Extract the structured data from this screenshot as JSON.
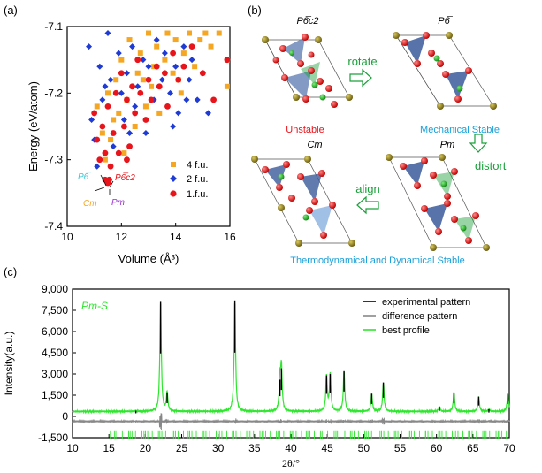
{
  "panel_labels": {
    "a": "(a)",
    "b": "(b)",
    "c": "(c)"
  },
  "chart_data": [
    {
      "type": "scatter",
      "panel": "a",
      "xlabel": "Volume (Å³)",
      "ylabel": "Energy (eV/atom)",
      "xlim": [
        10,
        16
      ],
      "ylim": [
        -7.4,
        -7.1
      ],
      "xticks": [
        10,
        12,
        14,
        16
      ],
      "xtick_labels": [
        "10",
        "12",
        "14",
        "16"
      ],
      "yticks": [
        -7.1,
        -7.2,
        -7.3,
        -7.4
      ],
      "ytick_labels": [
        "-7.1",
        "-7.2",
        "-7.3",
        "-7.4"
      ],
      "legend": [
        {
          "label": "4 f.u.",
          "color": "#f5a623",
          "marker": "square"
        },
        {
          "label": "2 f.u.",
          "color": "#1f3bd6",
          "marker": "diamond"
        },
        {
          "label": "1.f.u.",
          "color": "#e8141b",
          "marker": "circle"
        }
      ],
      "annotations": [
        {
          "text": "P6̅",
          "color": "#39c8d8",
          "x": 10.95,
          "y": -7.325
        },
        {
          "text": "P6̅c2",
          "color": "#e8141b",
          "x": 12.0,
          "y": -7.322
        },
        {
          "text": "Cm",
          "color": "#f5a623",
          "x": 11.0,
          "y": -7.355
        },
        {
          "text": "Pm",
          "color": "#9b30d0",
          "x": 11.8,
          "y": -7.353
        }
      ],
      "series": [
        {
          "name": "4 f.u.",
          "points": [
            [
              11.1,
              -7.22
            ],
            [
              11.3,
              -7.26
            ],
            [
              11.5,
              -7.2
            ],
            [
              11.6,
              -7.27
            ],
            [
              11.8,
              -7.18
            ],
            [
              11.9,
              -7.23
            ],
            [
              12.0,
              -7.15
            ],
            [
              12.1,
              -7.29
            ],
            [
              12.2,
              -7.21
            ],
            [
              12.3,
              -7.12
            ],
            [
              12.5,
              -7.25
            ],
            [
              12.6,
              -7.17
            ],
            [
              12.7,
              -7.14
            ],
            [
              12.9,
              -7.22
            ],
            [
              13.0,
              -7.11
            ],
            [
              13.1,
              -7.19
            ],
            [
              13.3,
              -7.13
            ],
            [
              13.4,
              -7.23
            ],
            [
              13.6,
              -7.15
            ],
            [
              13.7,
              -7.11
            ],
            [
              13.9,
              -7.17
            ],
            [
              14.0,
              -7.12
            ],
            [
              14.2,
              -7.2
            ],
            [
              14.3,
              -7.14
            ],
            [
              14.5,
              -7.11
            ],
            [
              14.7,
              -7.16
            ],
            [
              14.9,
              -7.12
            ],
            [
              15.1,
              -7.11
            ],
            [
              15.3,
              -7.13
            ],
            [
              15.6,
              -7.11
            ],
            [
              15.9,
              -7.19
            ],
            [
              11.4,
              -7.3
            ],
            [
              11.7,
              -7.24
            ],
            [
              12.8,
              -7.18
            ],
            [
              13.2,
              -7.16
            ],
            [
              14.1,
              -7.18
            ],
            [
              15.9,
              -7.15
            ]
          ]
        },
        {
          "name": "2 f.u.",
          "points": [
            [
              10.8,
              -7.13
            ],
            [
              10.9,
              -7.24
            ],
            [
              11.0,
              -7.27
            ],
            [
              11.2,
              -7.16
            ],
            [
              11.3,
              -7.21
            ],
            [
              11.5,
              -7.11
            ],
            [
              11.6,
              -7.18
            ],
            [
              11.7,
              -7.28
            ],
            [
              11.9,
              -7.14
            ],
            [
              12.0,
              -7.2
            ],
            [
              12.1,
              -7.24
            ],
            [
              12.2,
              -7.17
            ],
            [
              12.4,
              -7.13
            ],
            [
              12.5,
              -7.22
            ],
            [
              12.6,
              -7.19
            ],
            [
              12.8,
              -7.15
            ],
            [
              12.9,
              -7.26
            ],
            [
              13.0,
              -7.16
            ],
            [
              13.2,
              -7.21
            ],
            [
              13.3,
              -7.12
            ],
            [
              13.5,
              -7.18
            ],
            [
              13.6,
              -7.14
            ],
            [
              13.8,
              -7.2
            ],
            [
              14.0,
              -7.16
            ],
            [
              14.1,
              -7.23
            ],
            [
              14.3,
              -7.13
            ],
            [
              14.5,
              -7.18
            ],
            [
              14.6,
              -7.15
            ],
            [
              14.8,
              -7.21
            ],
            [
              15.0,
              -7.17
            ],
            [
              15.2,
              -7.23
            ],
            [
              11.4,
              -7.19
            ],
            [
              12.3,
              -7.26
            ],
            [
              13.9,
              -7.25
            ],
            [
              14.4,
              -7.21
            ],
            [
              11.1,
              -7.31
            ]
          ]
        },
        {
          "name": "1.f.u.",
          "points": [
            [
              11.0,
              -7.23
            ],
            [
              11.1,
              -7.27
            ],
            [
              11.2,
              -7.3
            ],
            [
              11.3,
              -7.25
            ],
            [
              11.4,
              -7.29
            ],
            [
              11.5,
              -7.22
            ],
            [
              11.6,
              -7.31
            ],
            [
              11.7,
              -7.26
            ],
            [
              11.8,
              -7.2
            ],
            [
              11.9,
              -7.29
            ],
            [
              12.0,
              -7.17
            ],
            [
              12.1,
              -7.25
            ],
            [
              12.2,
              -7.21
            ],
            [
              12.3,
              -7.28
            ],
            [
              12.4,
              -7.19
            ],
            [
              12.5,
              -7.23
            ],
            [
              12.6,
              -7.15
            ],
            [
              12.7,
              -7.2
            ],
            [
              12.9,
              -7.24
            ],
            [
              13.0,
              -7.18
            ],
            [
              13.1,
              -7.21
            ],
            [
              13.3,
              -7.16
            ],
            [
              13.4,
              -7.19
            ],
            [
              13.6,
              -7.17
            ],
            [
              13.7,
              -7.22
            ],
            [
              13.9,
              -7.14
            ],
            [
              14.1,
              -7.18
            ],
            [
              14.3,
              -7.16
            ],
            [
              14.6,
              -7.13
            ],
            [
              15.0,
              -7.17
            ],
            [
              15.4,
              -7.21
            ],
            [
              15.9,
              -7.15
            ],
            [
              11.4,
              -7.33
            ],
            [
              11.5,
              -7.335
            ],
            [
              11.55,
              -7.33
            ],
            [
              12.2,
              -7.3
            ]
          ]
        }
      ]
    },
    {
      "type": "line",
      "panel": "c",
      "xlabel": "2θ/°",
      "ylabel": "Intensity(a.u.)",
      "xlim": [
        10,
        70
      ],
      "ylim": [
        -1500,
        9000
      ],
      "xticks": [
        10,
        15,
        20,
        25,
        30,
        35,
        40,
        45,
        50,
        55,
        60,
        65,
        70
      ],
      "xtick_labels": [
        "10",
        "15",
        "20",
        "25",
        "30",
        "35",
        "40",
        "45",
        "50",
        "55",
        "60",
        "65",
        "70"
      ],
      "yticks": [
        9000,
        7500,
        6000,
        4500,
        3000,
        1500,
        0,
        -1500
      ],
      "ytick_labels": [
        "9,000",
        "7,500",
        "6,000",
        "4,500",
        "3,000",
        "1,500",
        "0",
        "-1,500"
      ],
      "annotation": "Pm-S",
      "legend": [
        {
          "label": "experimental pattern",
          "color": "#000000"
        },
        {
          "label": "difference pattern",
          "color": "#888888"
        },
        {
          "label": "best profile",
          "color": "#2ee62e"
        }
      ],
      "baseline": 350,
      "peaks": [
        {
          "x": 18.7,
          "y": 400
        },
        {
          "x": 22.1,
          "y": 8100
        },
        {
          "x": 23.0,
          "y": 1700
        },
        {
          "x": 32.3,
          "y": 8200
        },
        {
          "x": 38.5,
          "y": 2600
        },
        {
          "x": 38.7,
          "y": 3400
        },
        {
          "x": 44.9,
          "y": 2900
        },
        {
          "x": 45.4,
          "y": 3000
        },
        {
          "x": 47.3,
          "y": 3200
        },
        {
          "x": 51.1,
          "y": 1600
        },
        {
          "x": 52.7,
          "y": 2400
        },
        {
          "x": 60.4,
          "y": 700
        },
        {
          "x": 62.4,
          "y": 1700
        },
        {
          "x": 65.8,
          "y": 1400
        },
        {
          "x": 67.2,
          "y": 500
        },
        {
          "x": 69.8,
          "y": 1600
        }
      ],
      "tick_marks_y": -1300
    }
  ],
  "structures": {
    "top_left": {
      "title": "P6̅c2",
      "caption": "Unstable",
      "caption_color": "#e8141b"
    },
    "top_right": {
      "title": "P6̅",
      "caption": "Mechanical Stable",
      "caption_color": "#1aa0d8"
    },
    "bottom_left": {
      "title": "Cm"
    },
    "bottom_right": {
      "title": "Pm"
    },
    "bottom_caption": "Thermodynamical and Dynamical Stable",
    "bottom_caption_color": "#1aa0d8",
    "arrows": {
      "rotate": "rotate",
      "distort": "distort",
      "align": "align"
    },
    "arrow_color": "#1aa03a"
  }
}
